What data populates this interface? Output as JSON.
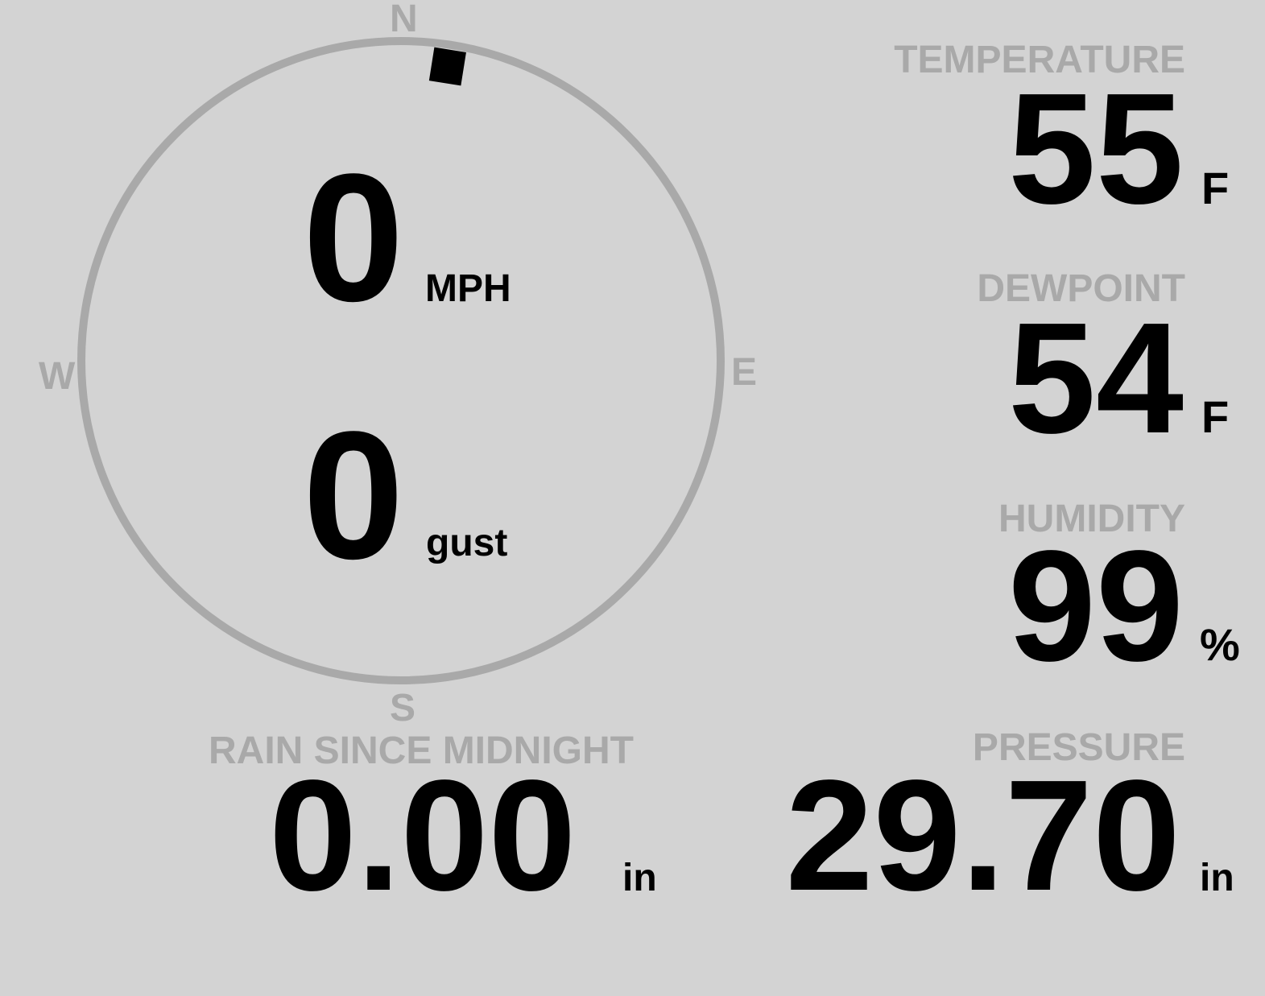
{
  "colors": {
    "background": "#d3d3d3",
    "muted": "#a9a9a9",
    "text": "#000000"
  },
  "compass": {
    "north": "N",
    "east": "E",
    "south": "S",
    "west": "W",
    "wind_direction_deg": 9
  },
  "wind": {
    "speed": "0",
    "speed_unit": "MPH",
    "gust": "0",
    "gust_unit": "gust"
  },
  "temperature": {
    "label": "TEMPERATURE",
    "value": "55",
    "unit": "F"
  },
  "dewpoint": {
    "label": "DEWPOINT",
    "value": "54",
    "unit": "F"
  },
  "humidity": {
    "label": "HUMIDITY",
    "value": "99",
    "unit": "%"
  },
  "pressure": {
    "label": "PRESSURE",
    "value": "29.70",
    "unit": "in"
  },
  "rain": {
    "label": "RAIN SINCE MIDNIGHT",
    "value": "0.00",
    "unit": "in"
  }
}
